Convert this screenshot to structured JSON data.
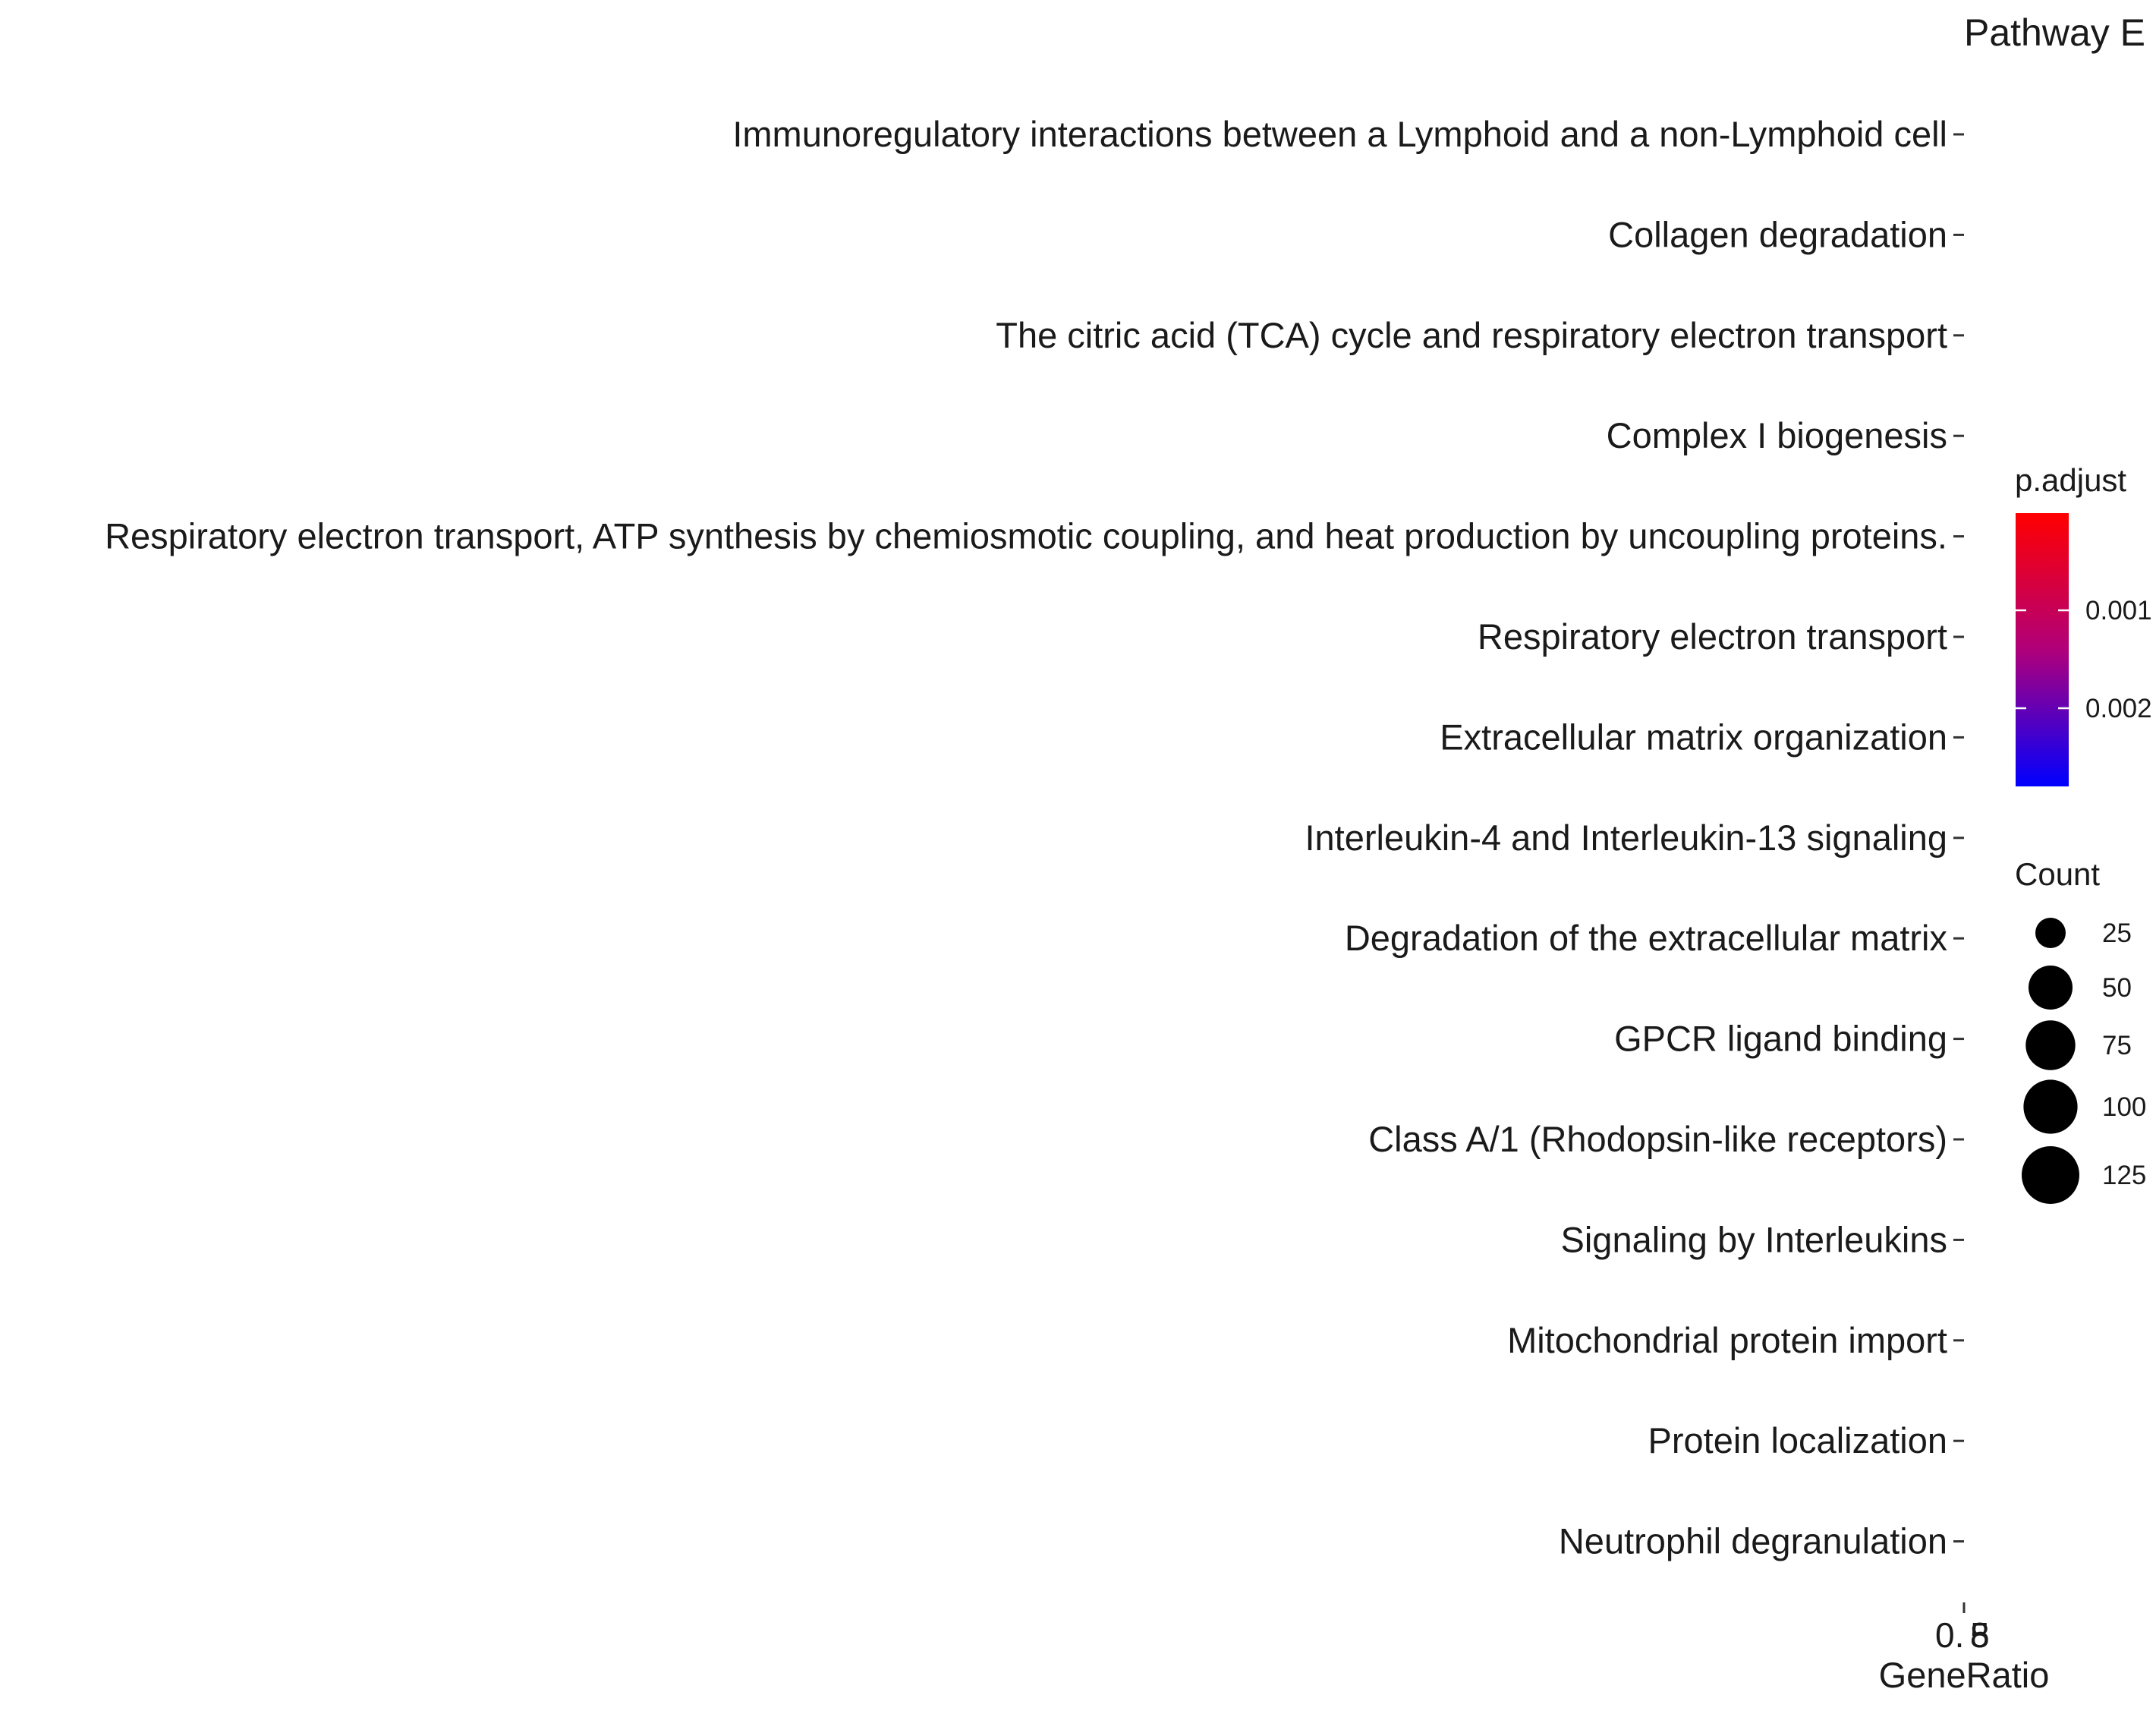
{
  "chart_data": {
    "type": "scatter",
    "title": "Pathway E",
    "xlabel": "GeneRatio",
    "ylabel": "",
    "x_tick_labels": [
      "0.",
      "8",
      "5"
    ],
    "categories": [
      "Immunoregulatory interactions between a Lymphoid and a non-Lymphoid cell",
      "Collagen degradation",
      "The citric acid (TCA) cycle and respiratory electron transport",
      "Complex I biogenesis",
      "Respiratory electron transport, ATP synthesis by chemiosmotic coupling, and heat production by uncoupling proteins.",
      "Respiratory electron transport",
      "Extracellular matrix organization",
      "Interleukin-4 and Interleukin-13 signaling",
      "Degradation of the extracellular matrix",
      "GPCR ligand binding",
      "Class A/1 (Rhodopsin-like receptors)",
      "Signaling by Interleukins",
      "Mitochondrial protein import",
      "Protein localization",
      "Neutrophil degranulation"
    ],
    "grid": false,
    "legend_placement": "right",
    "color_legend": {
      "title": "p.adjust",
      "ticks": [
        "0.001",
        "0.002"
      ],
      "gradient_top": "#ff0000",
      "gradient_bottom": "#0000ff"
    },
    "size_legend": {
      "title": "Count",
      "values": [
        25,
        50,
        75,
        100,
        125
      ],
      "labels": [
        "25",
        "50",
        "75",
        "100",
        "125"
      ],
      "color": "#000000"
    }
  }
}
